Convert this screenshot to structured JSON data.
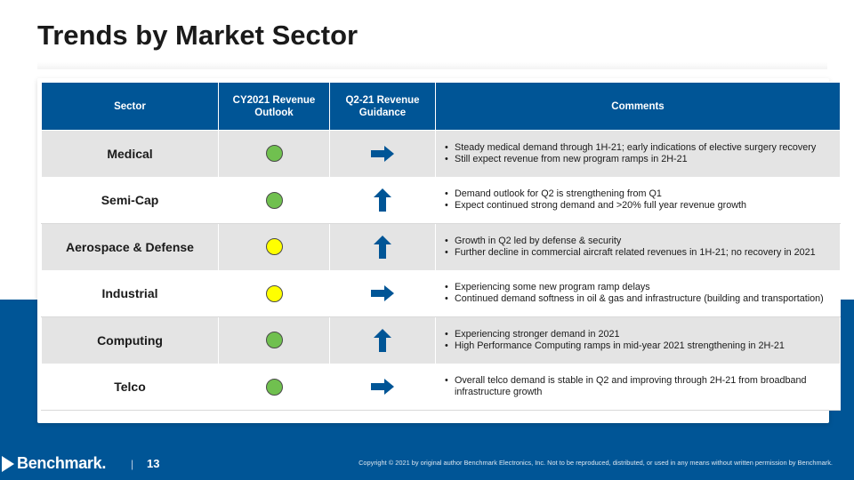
{
  "title": "Trends by Market Sector",
  "table": {
    "headers": {
      "sector": "Sector",
      "revenue_outlook": "CY2021 Revenue Outlook",
      "revenue_guidance": "Q2-21 Revenue Guidance",
      "comments": "Comments"
    },
    "rows": [
      {
        "sector": "Medical",
        "outlook_status": "green",
        "guidance_trend": "flat",
        "comments": [
          "Steady medical demand through 1H-21; early indications of elective surgery recovery",
          "Still expect revenue from new program ramps in 2H-21"
        ]
      },
      {
        "sector": "Semi-Cap",
        "outlook_status": "green",
        "guidance_trend": "up",
        "comments": [
          "Demand outlook for Q2 is strengthening from Q1",
          "Expect continued strong demand and >20% full year revenue growth"
        ]
      },
      {
        "sector": "Aerospace & Defense",
        "outlook_status": "yellow",
        "guidance_trend": "up",
        "comments": [
          "Growth in Q2 led by defense & security",
          "Further decline in commercial aircraft related revenues in 1H-21; no recovery in 2021"
        ]
      },
      {
        "sector": "Industrial",
        "outlook_status": "yellow",
        "guidance_trend": "flat",
        "comments": [
          "Experiencing some new program ramp delays",
          "Continued demand softness in oil & gas and infrastructure (building and transportation)"
        ]
      },
      {
        "sector": "Computing",
        "outlook_status": "green",
        "guidance_trend": "up",
        "comments": [
          "Experiencing stronger demand in 2021",
          "High Performance Computing ramps in mid-year 2021 strengthening in 2H-21"
        ]
      },
      {
        "sector": "Telco",
        "outlook_status": "green",
        "guidance_trend": "flat",
        "comments": [
          "Overall telco demand is stable in Q2 and improving through 2H-21 from broadband infrastructure growth"
        ]
      }
    ]
  },
  "colors": {
    "brand_blue": "#005596",
    "status_green": "#70c04f",
    "status_yellow": "#ffff00",
    "arrow_blue": "#005596"
  },
  "icons": {
    "flat": "arrow-right-icon",
    "up": "arrow-up-icon",
    "status": "status-dot-icon"
  },
  "footer": {
    "logo": "Benchmark.",
    "separator": "|",
    "page_number": "13",
    "copyright": "Copyright © 2021 by original author Benchmark Electronics, Inc. Not to be reproduced, distributed, or used in any means without written permission by Benchmark."
  }
}
